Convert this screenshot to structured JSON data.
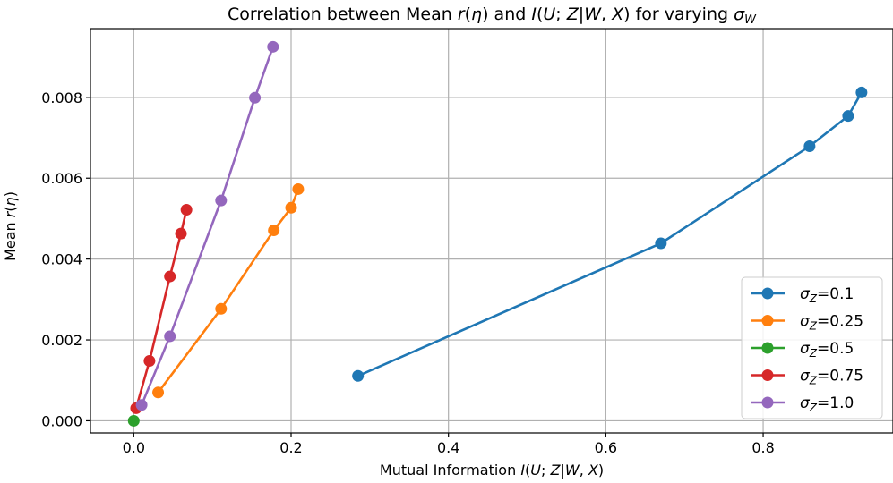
{
  "chart_data": {
    "type": "line",
    "title": "Correlation between Mean r(η) and I(U; Z|W, X) for varying σW",
    "xlabel": "Mutual Information I(U; Z|W, X)",
    "ylabel": "Mean r(η)",
    "xlim": [
      -0.055,
      0.965
    ],
    "ylim": [
      -0.0003,
      0.0097
    ],
    "xticks": [
      0.0,
      0.2,
      0.4,
      0.6,
      0.8
    ],
    "xtick_labels": [
      "0.0",
      "0.2",
      "0.4",
      "0.6",
      "0.8"
    ],
    "yticks": [
      0.0,
      0.002,
      0.004,
      0.006,
      0.008
    ],
    "ytick_labels": [
      "0.000",
      "0.002",
      "0.004",
      "0.006",
      "0.008"
    ],
    "grid": true,
    "legend_position": "lower-right",
    "series": [
      {
        "name": "σZ=0.1",
        "legend_label": "σZ=0.1",
        "color": "#1f77b4",
        "x": [
          0.285,
          0.67,
          0.859,
          0.908,
          0.925
        ],
        "y": [
          0.00111,
          0.00439,
          0.00679,
          0.00754,
          0.00812
        ]
      },
      {
        "name": "σZ=0.25",
        "legend_label": "σZ=0.25",
        "color": "#ff7f0e",
        "x": [
          0.031,
          0.111,
          0.178,
          0.2,
          0.209
        ],
        "y": [
          0.0007,
          0.00277,
          0.00471,
          0.00527,
          0.00573
        ]
      },
      {
        "name": "σZ=0.5",
        "legend_label": "σZ=0.5",
        "color": "#2ca02c",
        "x": [
          0.0
        ],
        "y": [
          0.0
        ]
      },
      {
        "name": "σZ=0.75",
        "legend_label": "σZ=0.75",
        "color": "#d62728",
        "x": [
          0.003,
          0.02,
          0.046,
          0.06,
          0.067
        ],
        "y": [
          0.00031,
          0.00148,
          0.00357,
          0.00463,
          0.00522
        ]
      },
      {
        "name": "σZ=1.0",
        "legend_label": "σZ=1.0",
        "color": "#9467bd",
        "x": [
          0.01,
          0.046,
          0.111,
          0.154,
          0.177
        ],
        "y": [
          0.00039,
          0.00209,
          0.00545,
          0.00799,
          0.00925
        ]
      }
    ]
  }
}
